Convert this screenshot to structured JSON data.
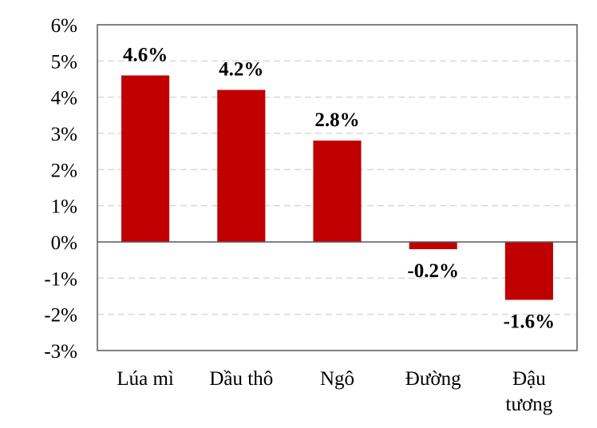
{
  "chart_data": {
    "type": "bar",
    "categories": [
      "Lúa mì",
      "Dầu thô",
      "Ngô",
      "Đường",
      "Đậu tương"
    ],
    "category_label_lines": [
      [
        "Lúa mì"
      ],
      [
        "Dầu thô"
      ],
      [
        "Ngô"
      ],
      [
        "Đường"
      ],
      [
        "Đậu",
        "tương"
      ]
    ],
    "values": [
      4.6,
      4.2,
      2.8,
      -0.2,
      -1.6
    ],
    "data_labels": [
      "4.6%",
      "4.2%",
      "2.8%",
      "-0.2%",
      "-1.6%"
    ],
    "ylim": [
      -3,
      6
    ],
    "yticks": [
      6,
      5,
      4,
      3,
      2,
      1,
      0,
      -1,
      -2,
      -3
    ],
    "ytick_labels": [
      "6%",
      "5%",
      "4%",
      "3%",
      "2%",
      "1%",
      "0%",
      "-1%",
      "-2%",
      "-3%"
    ],
    "title": "",
    "xlabel": "",
    "ylabel": "",
    "grid": "horizontal dashed",
    "legend": "none",
    "colors": {
      "bar": "#C00000",
      "grid": "#D9D9D9",
      "axis": "#595959"
    }
  }
}
